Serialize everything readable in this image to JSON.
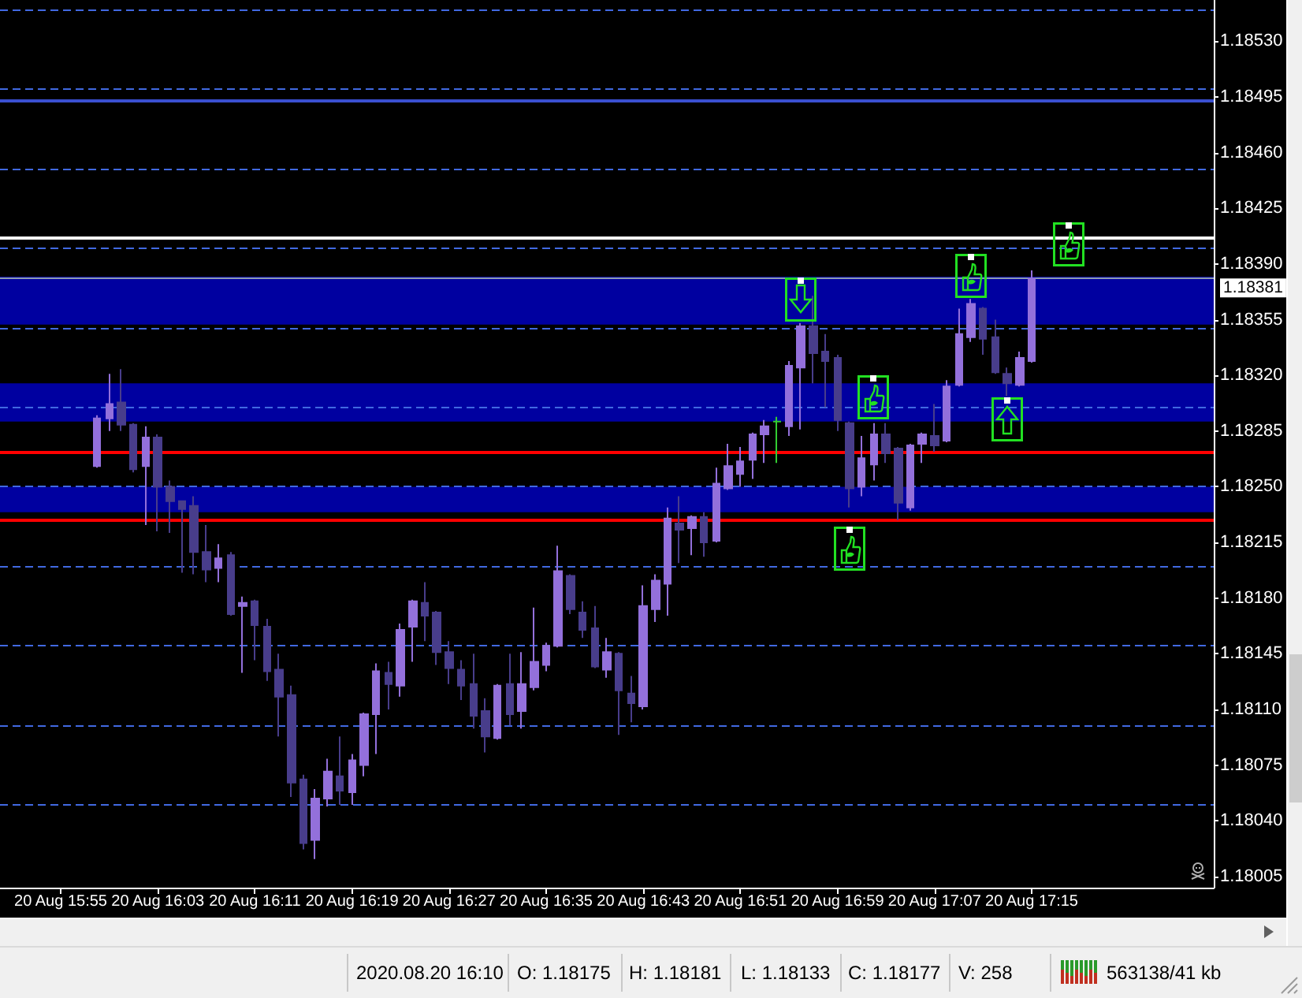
{
  "chart_data": {
    "type": "candlestick",
    "x": [
      "2020-08-20T15:58",
      "2020-08-20T15:59",
      "2020-08-20T16:00",
      "2020-08-20T16:01",
      "2020-08-20T16:02",
      "2020-08-20T16:03",
      "2020-08-20T16:04",
      "2020-08-20T16:05",
      "2020-08-20T16:06",
      "2020-08-20T16:07",
      "2020-08-20T16:08",
      "2020-08-20T16:09",
      "2020-08-20T16:10",
      "2020-08-20T16:11",
      "2020-08-20T16:12",
      "2020-08-20T16:13",
      "2020-08-20T16:14",
      "2020-08-20T16:15",
      "2020-08-20T16:16",
      "2020-08-20T16:17",
      "2020-08-20T16:18",
      "2020-08-20T16:19",
      "2020-08-20T16:20",
      "2020-08-20T16:21",
      "2020-08-20T16:22",
      "2020-08-20T16:23",
      "2020-08-20T16:24",
      "2020-08-20T16:25",
      "2020-08-20T16:26",
      "2020-08-20T16:27",
      "2020-08-20T16:28",
      "2020-08-20T16:29",
      "2020-08-20T16:30",
      "2020-08-20T16:31",
      "2020-08-20T16:32",
      "2020-08-20T16:33",
      "2020-08-20T16:34",
      "2020-08-20T16:35",
      "2020-08-20T16:36",
      "2020-08-20T16:37",
      "2020-08-20T16:38",
      "2020-08-20T16:39",
      "2020-08-20T16:40",
      "2020-08-20T16:41",
      "2020-08-20T16:42",
      "2020-08-20T16:43",
      "2020-08-20T16:44",
      "2020-08-20T16:45",
      "2020-08-20T16:46",
      "2020-08-20T16:47",
      "2020-08-20T16:48",
      "2020-08-20T16:49",
      "2020-08-20T16:50",
      "2020-08-20T16:51",
      "2020-08-20T16:52",
      "2020-08-20T16:53",
      "2020-08-20T16:54",
      "2020-08-20T16:55",
      "2020-08-20T16:56",
      "2020-08-20T16:57",
      "2020-08-20T16:58",
      "2020-08-20T16:59",
      "2020-08-20T17:00",
      "2020-08-20T17:01",
      "2020-08-20T17:02",
      "2020-08-20T17:03",
      "2020-08-20T17:04",
      "2020-08-20T17:05",
      "2020-08-20T17:06",
      "2020-08-20T17:07",
      "2020-08-20T17:08",
      "2020-08-20T17:09",
      "2020-08-20T17:10",
      "2020-08-20T17:11",
      "2020-08-20T17:12",
      "2020-08-20T17:13",
      "2020-08-20T17:14",
      "2020-08-20T17:15"
    ],
    "ohlc": [
      [
        1.18263,
        1.18295,
        1.18262,
        1.18293
      ],
      [
        1.18293,
        1.18321,
        1.18285,
        1.18302
      ],
      [
        1.18303,
        1.18324,
        1.18285,
        1.18289
      ],
      [
        1.18289,
        1.1829,
        1.18259,
        1.18261
      ],
      [
        1.18263,
        1.18288,
        1.18226,
        1.18281
      ],
      [
        1.18281,
        1.18283,
        1.18222,
        1.1825
      ],
      [
        1.1825,
        1.18254,
        1.18221,
        1.18241
      ],
      [
        1.18241,
        1.18241,
        1.18196,
        1.18236
      ],
      [
        1.18238,
        1.18244,
        1.18195,
        1.18209
      ],
      [
        1.18209,
        1.18226,
        1.1819,
        1.18198
      ],
      [
        1.18199,
        1.18214,
        1.1819,
        1.18205
      ],
      [
        1.18207,
        1.18209,
        1.18169,
        1.1817
      ],
      [
        1.18175,
        1.18181,
        1.18133,
        1.18177
      ],
      [
        1.18178,
        1.18179,
        1.18141,
        1.18163
      ],
      [
        1.18162,
        1.18167,
        1.18128,
        1.18134
      ],
      [
        1.18135,
        1.18145,
        1.18093,
        1.18118
      ],
      [
        1.18119,
        1.18125,
        1.18055,
        1.18064
      ],
      [
        1.18066,
        1.18069,
        1.18022,
        1.18026
      ],
      [
        1.18028,
        1.1806,
        1.18016,
        1.18054
      ],
      [
        1.18054,
        1.18079,
        1.18049,
        1.18071
      ],
      [
        1.18068,
        1.18093,
        1.1805,
        1.18059
      ],
      [
        1.18058,
        1.18082,
        1.1805,
        1.18078
      ],
      [
        1.18075,
        1.18108,
        1.18068,
        1.18107
      ],
      [
        1.18107,
        1.18139,
        1.18082,
        1.18134
      ],
      [
        1.18133,
        1.1814,
        1.1811,
        1.18126
      ],
      [
        1.18125,
        1.18164,
        1.18118,
        1.1816
      ],
      [
        1.18162,
        1.18179,
        1.1814,
        1.18178
      ],
      [
        1.18177,
        1.1819,
        1.18153,
        1.18169
      ],
      [
        1.18171,
        1.18172,
        1.18138,
        1.18146
      ],
      [
        1.18146,
        1.18153,
        1.18126,
        1.18136
      ],
      [
        1.18135,
        1.18141,
        1.18116,
        1.18125
      ],
      [
        1.18126,
        1.18145,
        1.18098,
        1.18106
      ],
      [
        1.18109,
        1.18117,
        1.18083,
        1.18093
      ],
      [
        1.18092,
        1.18126,
        1.18091,
        1.18125
      ],
      [
        1.18126,
        1.18145,
        1.181,
        1.18107
      ],
      [
        1.18109,
        1.18146,
        1.18098,
        1.18126
      ],
      [
        1.18124,
        1.18174,
        1.18122,
        1.1814
      ],
      [
        1.18138,
        1.18152,
        1.18134,
        1.1815
      ],
      [
        1.1815,
        1.18213,
        1.18149,
        1.18197
      ],
      [
        1.18194,
        1.18195,
        1.1817,
        1.18173
      ],
      [
        1.18171,
        1.18178,
        1.18155,
        1.1816
      ],
      [
        1.18161,
        1.18175,
        1.18136,
        1.18137
      ],
      [
        1.18135,
        1.18155,
        1.1813,
        1.18146
      ],
      [
        1.18145,
        1.18146,
        1.18094,
        1.18122
      ],
      [
        1.1812,
        1.18131,
        1.18102,
        1.18114
      ],
      [
        1.18112,
        1.18188,
        1.1811,
        1.18175
      ],
      [
        1.18173,
        1.18195,
        1.18165,
        1.18191
      ],
      [
        1.18189,
        1.18237,
        1.18169,
        1.1823
      ],
      [
        1.18227,
        1.18244,
        1.18202,
        1.18223
      ],
      [
        1.18224,
        1.18232,
        1.18207,
        1.18231
      ],
      [
        1.18231,
        1.18234,
        1.18206,
        1.18215
      ],
      [
        1.18216,
        1.18262,
        1.18215,
        1.18252
      ],
      [
        1.18249,
        1.18277,
        1.18248,
        1.18263
      ],
      [
        1.18258,
        1.18275,
        1.1825,
        1.18266
      ],
      [
        1.18267,
        1.18284,
        1.18255,
        1.18283
      ],
      [
        1.18283,
        1.18292,
        1.18265,
        1.18288
      ],
      [
        1.18291,
        1.18294,
        1.18265,
        1.18291
      ],
      [
        1.18288,
        1.18329,
        1.18282,
        1.18326
      ],
      [
        1.18325,
        1.18353,
        1.18286,
        1.18351
      ],
      [
        1.18351,
        1.1837,
        1.18315,
        1.18334
      ],
      [
        1.18335,
        1.18346,
        1.183,
        1.18329
      ],
      [
        1.18331,
        1.18333,
        1.18285,
        1.18292
      ],
      [
        1.1829,
        1.18291,
        1.18237,
        1.18249
      ],
      [
        1.1825,
        1.18282,
        1.18244,
        1.18268
      ],
      [
        1.18264,
        1.1829,
        1.18254,
        1.18283
      ],
      [
        1.18283,
        1.1829,
        1.18265,
        1.18271
      ],
      [
        1.18274,
        1.18275,
        1.18229,
        1.1824
      ],
      [
        1.18237,
        1.18277,
        1.18235,
        1.18276
      ],
      [
        1.18277,
        1.18284,
        1.18265,
        1.18283
      ],
      [
        1.18282,
        1.18302,
        1.18272,
        1.18276
      ],
      [
        1.18279,
        1.18317,
        1.18278,
        1.18313
      ],
      [
        1.18314,
        1.18362,
        1.18313,
        1.18346
      ],
      [
        1.18344,
        1.18368,
        1.18341,
        1.18365
      ],
      [
        1.18362,
        1.18363,
        1.18333,
        1.18343
      ],
      [
        1.18344,
        1.18355,
        1.18321,
        1.18322
      ],
      [
        1.18321,
        1.18325,
        1.18307,
        1.18315
      ],
      [
        1.18314,
        1.18335,
        1.18313,
        1.18331
      ],
      [
        1.18329,
        1.18386,
        1.18328,
        1.18381
      ]
    ],
    "colors": [
      "#9370db",
      "#9370db",
      "#483d8b",
      "#483d8b",
      "#9370db",
      "#483d8b",
      "#483d8b",
      "#483d8b",
      "#483d8b",
      "#483d8b",
      "#9370db",
      "#483d8b",
      "#9370db",
      "#483d8b",
      "#483d8b",
      "#483d8b",
      "#483d8b",
      "#483d8b",
      "#9370db",
      "#9370db",
      "#483d8b",
      "#9370db",
      "#9370db",
      "#9370db",
      "#483d8b",
      "#9370db",
      "#9370db",
      "#483d8b",
      "#483d8b",
      "#483d8b",
      "#483d8b",
      "#483d8b",
      "#483d8b",
      "#9370db",
      "#483d8b",
      "#9370db",
      "#9370db",
      "#9370db",
      "#9370db",
      "#483d8b",
      "#483d8b",
      "#483d8b",
      "#9370db",
      "#483d8b",
      "#483d8b",
      "#9370db",
      "#9370db",
      "#9370db",
      "#483d8b",
      "#9370db",
      "#483d8b",
      "#9370db",
      "#9370db",
      "#9370db",
      "#9370db",
      "#9370db",
      "#32cd32",
      "#9370db",
      "#9370db",
      "#483d8b",
      "#483d8b",
      "#483d8b",
      "#483d8b",
      "#9370db",
      "#9370db",
      "#483d8b",
      "#483d8b",
      "#9370db",
      "#9370db",
      "#483d8b",
      "#9370db",
      "#9370db",
      "#9370db",
      "#483d8b",
      "#483d8b",
      "#483d8b",
      "#9370db",
      "#9370db"
    ],
    "xlim": [
      "2020-08-20T15:50",
      "2020-08-20T17:30"
    ],
    "xticks": [
      {
        "value": "2020-08-20T15:55",
        "label": "20 Aug 15:55"
      },
      {
        "value": "2020-08-20T16:03",
        "label": "20 Aug 16:03"
      },
      {
        "value": "2020-08-20T16:11",
        "label": "20 Aug 16:11"
      },
      {
        "value": "2020-08-20T16:19",
        "label": "20 Aug 16:19"
      },
      {
        "value": "2020-08-20T16:27",
        "label": "20 Aug 16:27"
      },
      {
        "value": "2020-08-20T16:35",
        "label": "20 Aug 16:35"
      },
      {
        "value": "2020-08-20T16:43",
        "label": "20 Aug 16:43"
      },
      {
        "value": "2020-08-20T16:51",
        "label": "20 Aug 16:51"
      },
      {
        "value": "2020-08-20T16:59",
        "label": "20 Aug 16:59"
      },
      {
        "value": "2020-08-20T17:07",
        "label": "20 Aug 17:07"
      },
      {
        "value": "2020-08-20T17:15",
        "label": "20 Aug 17:15"
      }
    ],
    "ylim": [
      1.17998,
      1.18556
    ],
    "yticks": [
      {
        "value": 1.18005,
        "label": "1.18005"
      },
      {
        "value": 1.1804,
        "label": "1.18040"
      },
      {
        "value": 1.18075,
        "label": "1.18075"
      },
      {
        "value": 1.1811,
        "label": "1.18110"
      },
      {
        "value": 1.18145,
        "label": "1.18145"
      },
      {
        "value": 1.1818,
        "label": "1.18180"
      },
      {
        "value": 1.18215,
        "label": "1.18215"
      },
      {
        "value": 1.1825,
        "label": "1.18250"
      },
      {
        "value": 1.18285,
        "label": "1.18285"
      },
      {
        "value": 1.1832,
        "label": "1.18320"
      },
      {
        "value": 1.18355,
        "label": "1.18355"
      },
      {
        "value": 1.1839,
        "label": "1.18390"
      },
      {
        "value": 1.18425,
        "label": "1.18425"
      },
      {
        "value": 1.1846,
        "label": "1.18460"
      },
      {
        "value": 1.18495,
        "label": "1.18495"
      },
      {
        "value": 1.1853,
        "label": "1.18530"
      }
    ],
    "bands": [
      {
        "axis": "y",
        "from": 1.18352,
        "to": 1.18382,
        "color": "#0000a0"
      },
      {
        "axis": "y",
        "from": 1.18291,
        "to": 1.18315,
        "color": "#0000a0"
      },
      {
        "axis": "y",
        "from": 1.18234,
        "to": 1.1825,
        "color": "#0000a0"
      }
    ],
    "ref_lines": [
      {
        "axis": "y",
        "value": 1.1855,
        "color": "#4169e1",
        "line_style": "dashed"
      },
      {
        "axis": "y",
        "value": 1.185,
        "color": "#4169e1",
        "line_style": "dashed"
      },
      {
        "axis": "y",
        "value": 1.1845,
        "color": "#4169e1",
        "line_style": "dashed"
      },
      {
        "axis": "y",
        "value": 1.184,
        "color": "#4169e1",
        "line_style": "dashed"
      },
      {
        "axis": "y",
        "value": 1.1835,
        "color": "#4169e1",
        "line_style": "dashed"
      },
      {
        "axis": "y",
        "value": 1.183,
        "color": "#4169e1",
        "line_style": "dashed"
      },
      {
        "axis": "y",
        "value": 1.1825,
        "color": "#4169e1",
        "line_style": "dashed"
      },
      {
        "axis": "y",
        "value": 1.182,
        "color": "#4169e1",
        "line_style": "dashed"
      },
      {
        "axis": "y",
        "value": 1.1815,
        "color": "#4169e1",
        "line_style": "dashed"
      },
      {
        "axis": "y",
        "value": 1.181,
        "color": "#4169e1",
        "line_style": "dashed"
      },
      {
        "axis": "y",
        "value": 1.1805,
        "color": "#4169e1",
        "line_style": "dashed"
      },
      {
        "axis": "y",
        "value": 1.18493,
        "color": "#3a4fd0"
      },
      {
        "axis": "y",
        "value": 1.18407,
        "color": "#ffffff"
      },
      {
        "axis": "y",
        "value": 1.18272,
        "color": "#ff0000"
      },
      {
        "axis": "y",
        "value": 1.18229,
        "color": "#ff0000"
      },
      {
        "axis": "y",
        "value": 1.18381,
        "label": "1.18381",
        "color": "#8a9ab0"
      }
    ],
    "annotations": [
      "2020.08.20 16:10",
      "O: 1.18175",
      "H: 1.18181",
      "L: 1.18133",
      "C: 1.18177",
      "V: 258",
      "563138/41 kb"
    ]
  }
}
